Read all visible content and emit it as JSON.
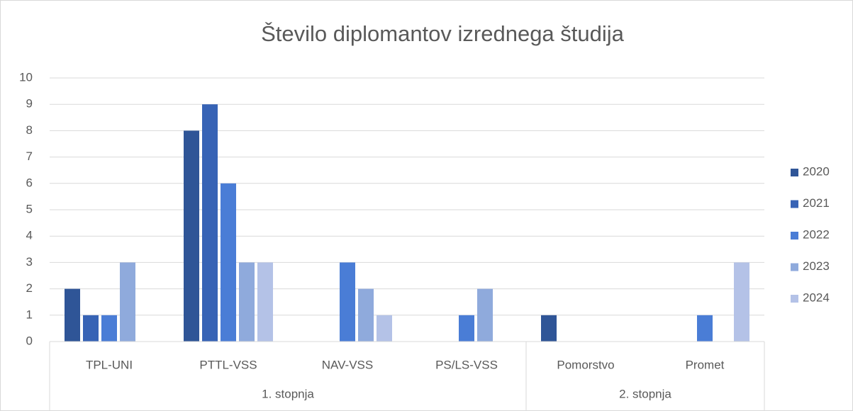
{
  "chart_data": {
    "type": "bar",
    "title": "Število diplomantov izrednega študija",
    "groups": [
      {
        "name": "1. stopnja",
        "categories": [
          "TPL-UNI",
          "PTTL-VSS",
          "NAV-VSS",
          "PS/LS-VSS"
        ]
      },
      {
        "name": "2. stopnja",
        "categories": [
          "Pomorstvo",
          "Promet"
        ]
      }
    ],
    "series": [
      {
        "name": "2020",
        "color": "#2f5597",
        "values": [
          2,
          8,
          null,
          null,
          1,
          null
        ]
      },
      {
        "name": "2021",
        "color": "#3763b5",
        "values": [
          1,
          9,
          null,
          null,
          null,
          null
        ]
      },
      {
        "name": "2022",
        "color": "#4a7dd6",
        "values": [
          1,
          6,
          3,
          1,
          null,
          1
        ]
      },
      {
        "name": "2023",
        "color": "#8faadc",
        "values": [
          3,
          3,
          2,
          2,
          null,
          null
        ]
      },
      {
        "name": "2024",
        "color": "#b4c2e7",
        "values": [
          null,
          3,
          1,
          null,
          null,
          3
        ]
      }
    ],
    "ylim": [
      0,
      10
    ],
    "yticks": [
      0,
      1,
      2,
      3,
      4,
      5,
      6,
      7,
      8,
      9,
      10
    ],
    "grid": true,
    "legend": "right"
  }
}
